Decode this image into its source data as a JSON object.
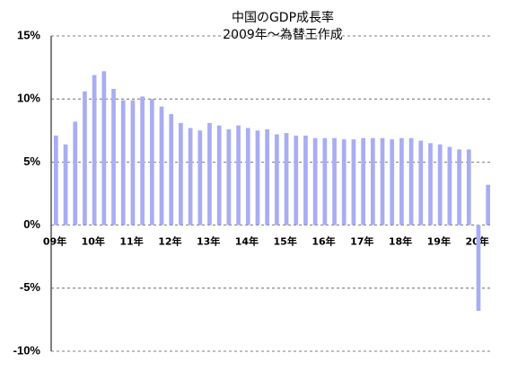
{
  "chart_data": {
    "type": "bar",
    "title": "中国のGDP成長率",
    "subtitle": "2009年～為替王作成",
    "categories": [
      "09年",
      null,
      null,
      null,
      "10年",
      null,
      null,
      null,
      "11年",
      null,
      null,
      null,
      "12年",
      null,
      null,
      null,
      "13年",
      null,
      null,
      null,
      "14年",
      null,
      null,
      null,
      "15年",
      null,
      null,
      null,
      "16年",
      null,
      null,
      null,
      "17年",
      null,
      null,
      null,
      "18年",
      null,
      null,
      null,
      "19年",
      null,
      null,
      null,
      "20年",
      null
    ],
    "values": [
      7.1,
      6.4,
      8.2,
      10.6,
      11.9,
      12.2,
      10.8,
      9.9,
      9.9,
      10.2,
      10.0,
      9.4,
      8.8,
      8.1,
      7.7,
      7.5,
      8.1,
      7.9,
      7.6,
      7.9,
      7.7,
      7.5,
      7.6,
      7.2,
      7.3,
      7.1,
      7.1,
      6.9,
      6.9,
      6.9,
      6.8,
      6.8,
      6.9,
      6.9,
      6.9,
      6.8,
      6.9,
      6.9,
      6.7,
      6.5,
      6.4,
      6.2,
      6.0,
      6.0,
      -6.8,
      3.2
    ],
    "color": "#a9adf2",
    "ylim": [
      -10,
      15
    ],
    "yticks": [
      {
        "value": -10,
        "label": "-10%"
      },
      {
        "value": -5,
        "label": "-5%"
      },
      {
        "value": 0,
        "label": "0%"
      },
      {
        "value": 5,
        "label": "5%"
      },
      {
        "value": 10,
        "label": "10%"
      },
      {
        "value": 15,
        "label": "15%"
      }
    ],
    "grid": true
  }
}
